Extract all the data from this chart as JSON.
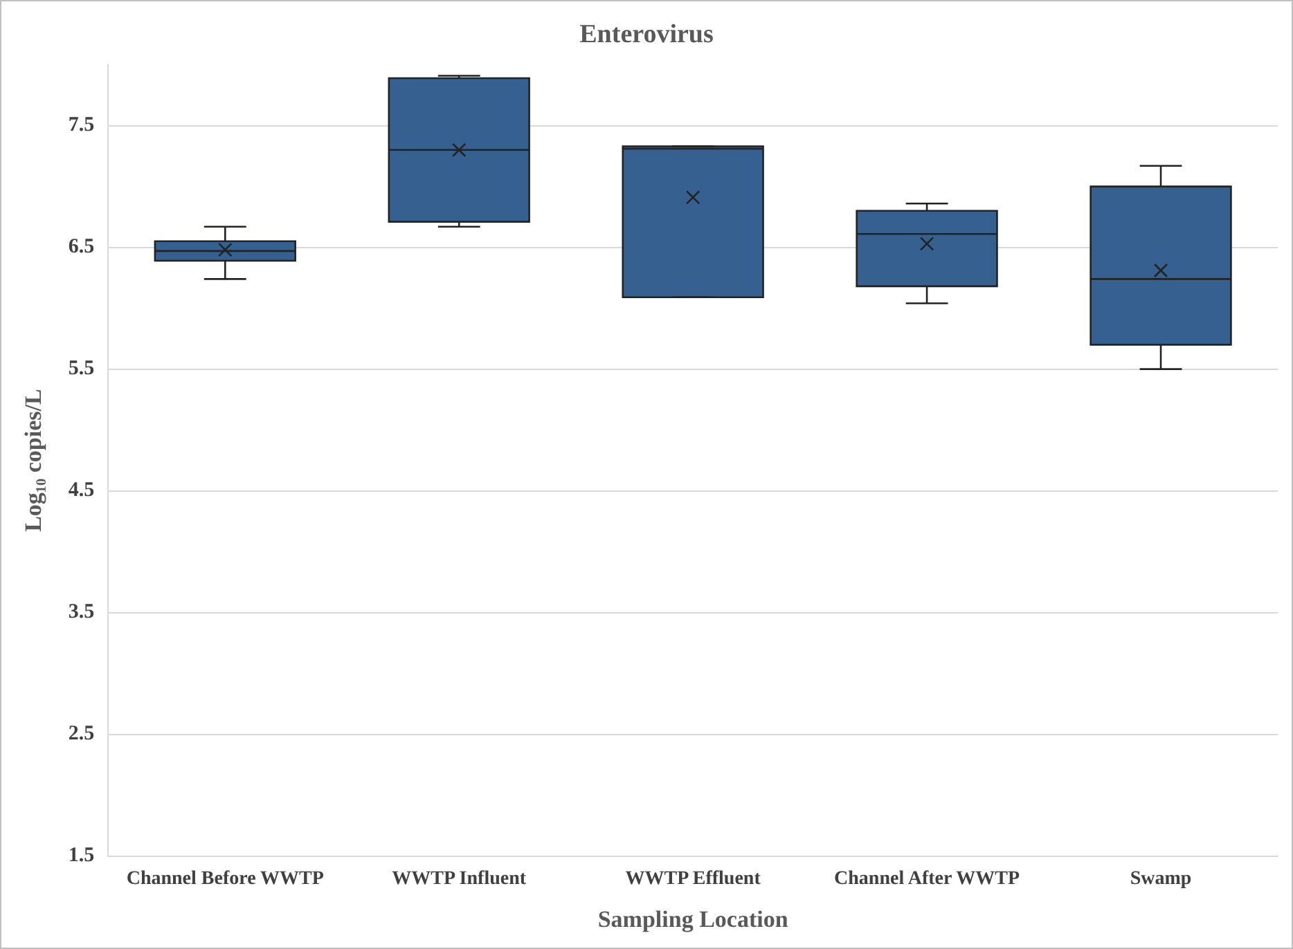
{
  "chart_data": {
    "type": "box",
    "title": "Enterovirus",
    "xlabel": "Sampling Location",
    "ylabel": "Log₁₀ copies/L",
    "categories": [
      "Channel Before WWTP",
      "WWTP Influent",
      "WWTP Effluent",
      "Channel After WWTP",
      "Swamp"
    ],
    "color": "#35608f",
    "boxes": [
      {
        "low": 6.24,
        "q1": 6.39,
        "median": 6.47,
        "q3": 6.55,
        "high": 6.67,
        "mean": 6.48
      },
      {
        "low": 6.67,
        "q1": 6.71,
        "median": 7.3,
        "q3": 7.89,
        "high": 7.91,
        "mean": 7.3
      },
      {
        "low": 6.09,
        "q1": 6.09,
        "median": 7.31,
        "q3": 7.33,
        "high": 7.33,
        "mean": 6.91
      },
      {
        "low": 6.04,
        "q1": 6.18,
        "median": 6.61,
        "q3": 6.8,
        "high": 6.86,
        "mean": 6.53
      },
      {
        "low": 5.5,
        "q1": 5.7,
        "median": 6.24,
        "q3": 7.0,
        "high": 7.17,
        "mean": 6.31
      }
    ],
    "ylim": [
      1.5,
      8.0
    ],
    "yticks": [
      1.5,
      2.5,
      3.5,
      4.5,
      5.5,
      6.5,
      7.5
    ],
    "grid": "y",
    "legend": false,
    "marker": "cross"
  }
}
